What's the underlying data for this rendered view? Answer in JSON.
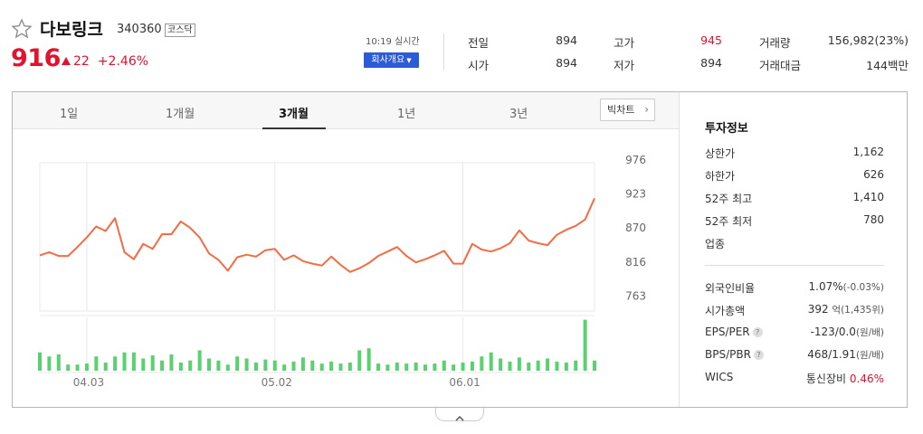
{
  "stock": {
    "name": "다보링크",
    "code": "340360",
    "market": "코스닥",
    "price": "916",
    "change": "22",
    "change_rate": "+2.46%",
    "realtime": "10:19 실시간",
    "company_button": "회사개요"
  },
  "quote": {
    "prev_close_label": "전일",
    "prev_close": "894",
    "high_label": "고가",
    "high": "945",
    "volume_label": "거래량",
    "volume": "156,982(23%)",
    "open_label": "시가",
    "open": "894",
    "low_label": "저가",
    "low": "894",
    "amount_label": "거래대금",
    "amount": "144백만"
  },
  "tabs": [
    "1일",
    "1개월",
    "3개월",
    "1년",
    "3년"
  ],
  "active_tab": "3개월",
  "big_chart_label": "빅차트",
  "chart_data": {
    "type": "line",
    "price_axis": [
      976,
      923,
      870,
      816,
      763
    ],
    "ylim": [
      740,
      990
    ],
    "x_ticks": [
      "04.03",
      "05.02",
      "06.01"
    ],
    "x_tick_index": [
      5,
      25,
      45
    ],
    "price_values": [
      827,
      832,
      826,
      826,
      840,
      855,
      872,
      865,
      885,
      832,
      821,
      845,
      837,
      860,
      860,
      880,
      870,
      855,
      830,
      820,
      803,
      824,
      828,
      825,
      835,
      837,
      820,
      827,
      818,
      814,
      811,
      825,
      812,
      801,
      807,
      815,
      826,
      833,
      840,
      826,
      816,
      821,
      827,
      834,
      814,
      814,
      845,
      836,
      833,
      838,
      846,
      866,
      850,
      846,
      843,
      859,
      867,
      873,
      883,
      916
    ],
    "volume_values": [
      18,
      14,
      16,
      6,
      6,
      7,
      14,
      8,
      14,
      18,
      18,
      12,
      15,
      10,
      16,
      8,
      10,
      20,
      12,
      10,
      6,
      14,
      12,
      8,
      11,
      10,
      6,
      9,
      13,
      10,
      7,
      9,
      7,
      8,
      20,
      22,
      7,
      6,
      8,
      7,
      8,
      6,
      7,
      10,
      6,
      8,
      9,
      14,
      18,
      12,
      9,
      13,
      8,
      10,
      12,
      9,
      8,
      10,
      50,
      10
    ],
    "volume_max": 55,
    "line_color": "#f56b43",
    "volume_color": "#5ad06e"
  },
  "info": {
    "title": "투자정보",
    "upper_limit_label": "상한가",
    "upper_limit": "1,162",
    "lower_limit_label": "하한가",
    "lower_limit": "626",
    "high52_label": "52주 최고",
    "high52": "1,410",
    "low52_label": "52주 최저",
    "low52": "780",
    "industry_label": "업종",
    "foreign_label": "외국인비율",
    "foreign_value": "1.07%",
    "foreign_change": "(-0.03%)",
    "mktcap_label": "시가총액",
    "mktcap_value": "392",
    "mktcap_unit": "억(1,435위)",
    "eps_label": "EPS/PER",
    "eps_value": "-123/0.0",
    "eps_unit": "(원/배)",
    "bps_label": "BPS/PBR",
    "bps_value": "468/1.91",
    "bps_unit": "(원/배)",
    "wics_label": "WICS",
    "wics_value": "통신장비",
    "wics_change": "0.46%"
  },
  "colors": {
    "up": "#e5112d",
    "down": "#2b5bd7",
    "button": "#2b5bd7"
  }
}
